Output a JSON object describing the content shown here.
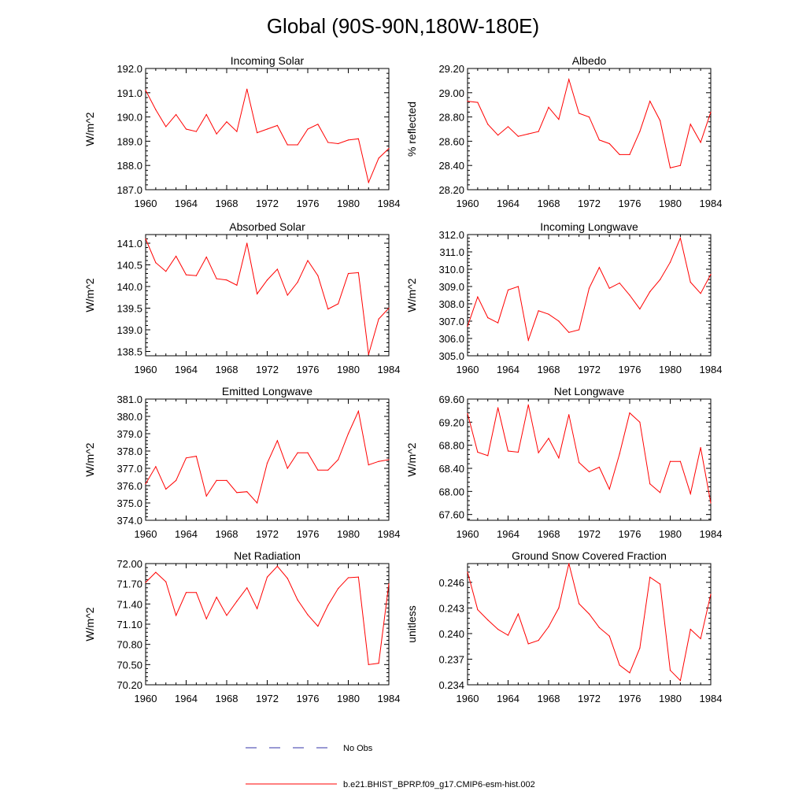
{
  "title": "Global (90S-90N,180W-180E)",
  "colors": {
    "model_line": "#ff0000",
    "obs_line": "#3333aa",
    "axis": "#000000"
  },
  "years": [
    1960,
    1961,
    1962,
    1963,
    1964,
    1965,
    1966,
    1967,
    1968,
    1969,
    1970,
    1971,
    1972,
    1973,
    1974,
    1975,
    1976,
    1977,
    1978,
    1979,
    1980,
    1981,
    1982,
    1983,
    1984
  ],
  "legend": {
    "obs_label": "No Obs",
    "model_label": "b.e21.BHIST_BPRP.f09_g17.CMIP6-esm-hist.002"
  },
  "chart_data": [
    {
      "type": "line",
      "title": "Incoming Solar",
      "ylabel": "W/m^2",
      "xlim": [
        1960,
        1984
      ],
      "xticks": [
        "1960",
        "1964",
        "1968",
        "1972",
        "1976",
        "1980",
        "1984"
      ],
      "ylim": [
        187.0,
        192.0
      ],
      "yticks": [
        "187.0",
        "188.0",
        "189.0",
        "190.0",
        "191.0",
        "192.0"
      ],
      "values": [
        191.1,
        190.3,
        189.6,
        190.1,
        189.5,
        189.4,
        190.1,
        189.3,
        189.8,
        189.4,
        191.15,
        189.35,
        189.5,
        189.65,
        188.85,
        188.85,
        189.5,
        189.7,
        188.95,
        188.9,
        189.05,
        189.1,
        187.3,
        188.3,
        188.7
      ]
    },
    {
      "type": "line",
      "title": "Albedo",
      "ylabel": "% reflected",
      "xlim": [
        1960,
        1984
      ],
      "xticks": [
        "1960",
        "1964",
        "1968",
        "1972",
        "1976",
        "1980",
        "1984"
      ],
      "ylim": [
        28.2,
        29.2
      ],
      "yticks": [
        "28.20",
        "28.40",
        "28.60",
        "28.80",
        "29.00",
        "29.20"
      ],
      "values": [
        28.93,
        28.92,
        28.74,
        28.65,
        28.72,
        28.64,
        28.66,
        28.68,
        28.88,
        28.78,
        29.11,
        28.83,
        28.8,
        28.61,
        28.58,
        28.49,
        28.49,
        28.68,
        28.93,
        28.77,
        28.38,
        28.4,
        28.74,
        28.59,
        28.84
      ]
    },
    {
      "type": "line",
      "title": "Absorbed Solar",
      "ylabel": "W/m^2",
      "xlim": [
        1960,
        1984
      ],
      "xticks": [
        "1960",
        "1964",
        "1968",
        "1972",
        "1976",
        "1980",
        "1984"
      ],
      "ylim": [
        138.4,
        141.2
      ],
      "yticks": [
        "138.5",
        "139.0",
        "139.5",
        "140.0",
        "140.5",
        "141.0"
      ],
      "values": [
        141.1,
        140.55,
        140.35,
        140.7,
        140.27,
        140.25,
        140.68,
        140.18,
        140.15,
        140.03,
        141.0,
        139.83,
        140.15,
        140.4,
        139.8,
        140.1,
        140.6,
        140.25,
        139.48,
        139.6,
        140.3,
        140.32,
        138.43,
        139.25,
        139.5
      ]
    },
    {
      "type": "line",
      "title": "Incoming Longwave",
      "ylabel": "W/m^2",
      "xlim": [
        1960,
        1984
      ],
      "xticks": [
        "1960",
        "1964",
        "1968",
        "1972",
        "1976",
        "1980",
        "1984"
      ],
      "ylim": [
        305.0,
        312.0
      ],
      "yticks": [
        "305.0",
        "306.0",
        "307.0",
        "308.0",
        "309.0",
        "310.0",
        "311.0",
        "312.0"
      ],
      "values": [
        306.7,
        308.4,
        307.2,
        306.9,
        308.8,
        309.0,
        305.9,
        307.6,
        307.4,
        307.0,
        306.35,
        306.5,
        308.9,
        310.1,
        308.9,
        309.2,
        308.5,
        307.7,
        308.7,
        309.4,
        310.4,
        311.8,
        309.25,
        308.6,
        309.7
      ]
    },
    {
      "type": "line",
      "title": "Emitted Longwave",
      "ylabel": "W/m^2",
      "xlim": [
        1960,
        1984
      ],
      "xticks": [
        "1960",
        "1964",
        "1968",
        "1972",
        "1976",
        "1980",
        "1984"
      ],
      "ylim": [
        374.0,
        381.0
      ],
      "yticks": [
        "374.0",
        "375.0",
        "376.0",
        "377.0",
        "378.0",
        "379.0",
        "380.0",
        "381.0"
      ],
      "values": [
        376.1,
        377.1,
        375.8,
        376.3,
        377.6,
        377.7,
        375.4,
        376.3,
        376.3,
        375.6,
        375.65,
        375.0,
        377.3,
        378.6,
        377.0,
        377.9,
        377.9,
        376.9,
        376.9,
        377.5,
        379.0,
        380.3,
        377.2,
        377.4,
        377.5
      ]
    },
    {
      "type": "line",
      "title": "Net Longwave",
      "ylabel": "W/m^2",
      "xlim": [
        1960,
        1984
      ],
      "xticks": [
        "1960",
        "1964",
        "1968",
        "1972",
        "1976",
        "1980",
        "1984"
      ],
      "ylim": [
        67.5,
        69.6
      ],
      "yticks": [
        "67.60",
        "68.00",
        "68.40",
        "68.80",
        "69.20",
        "69.60"
      ],
      "values": [
        69.35,
        68.68,
        68.62,
        69.45,
        68.7,
        68.68,
        69.5,
        68.67,
        68.92,
        68.58,
        69.33,
        68.5,
        68.34,
        68.42,
        68.04,
        68.65,
        69.36,
        69.2,
        68.13,
        67.98,
        68.52,
        68.52,
        67.96,
        68.76,
        67.8
      ]
    },
    {
      "type": "line",
      "title": "Net Radiation",
      "ylabel": "W/m^2",
      "xlim": [
        1960,
        1984
      ],
      "xticks": [
        "1960",
        "1964",
        "1968",
        "1972",
        "1976",
        "1980",
        "1984"
      ],
      "ylim": [
        70.2,
        72.0
      ],
      "yticks": [
        "70.20",
        "70.50",
        "70.80",
        "71.10",
        "71.40",
        "71.70",
        "72.00"
      ],
      "values": [
        71.72,
        71.87,
        71.73,
        71.23,
        71.57,
        71.57,
        71.18,
        71.5,
        71.23,
        71.44,
        71.64,
        71.33,
        71.8,
        71.96,
        71.78,
        71.46,
        71.24,
        71.07,
        71.38,
        71.63,
        71.79,
        71.8,
        70.5,
        70.52,
        71.7
      ]
    },
    {
      "type": "line",
      "title": "Ground Snow Covered Fraction",
      "ylabel": "unitless",
      "xlim": [
        1960,
        1984
      ],
      "xticks": [
        "1960",
        "1964",
        "1968",
        "1972",
        "1976",
        "1980",
        "1984"
      ],
      "ylim": [
        0.234,
        0.2482
      ],
      "yticks": [
        "0.234",
        "0.237",
        "0.240",
        "0.243",
        "0.246"
      ],
      "values": [
        0.2472,
        0.2428,
        0.2416,
        0.2405,
        0.2398,
        0.2423,
        0.2388,
        0.2392,
        0.2408,
        0.243,
        0.2482,
        0.2435,
        0.2423,
        0.2407,
        0.2397,
        0.2363,
        0.2354,
        0.2383,
        0.2466,
        0.2458,
        0.2357,
        0.2345,
        0.2405,
        0.2394,
        0.2446
      ]
    }
  ]
}
